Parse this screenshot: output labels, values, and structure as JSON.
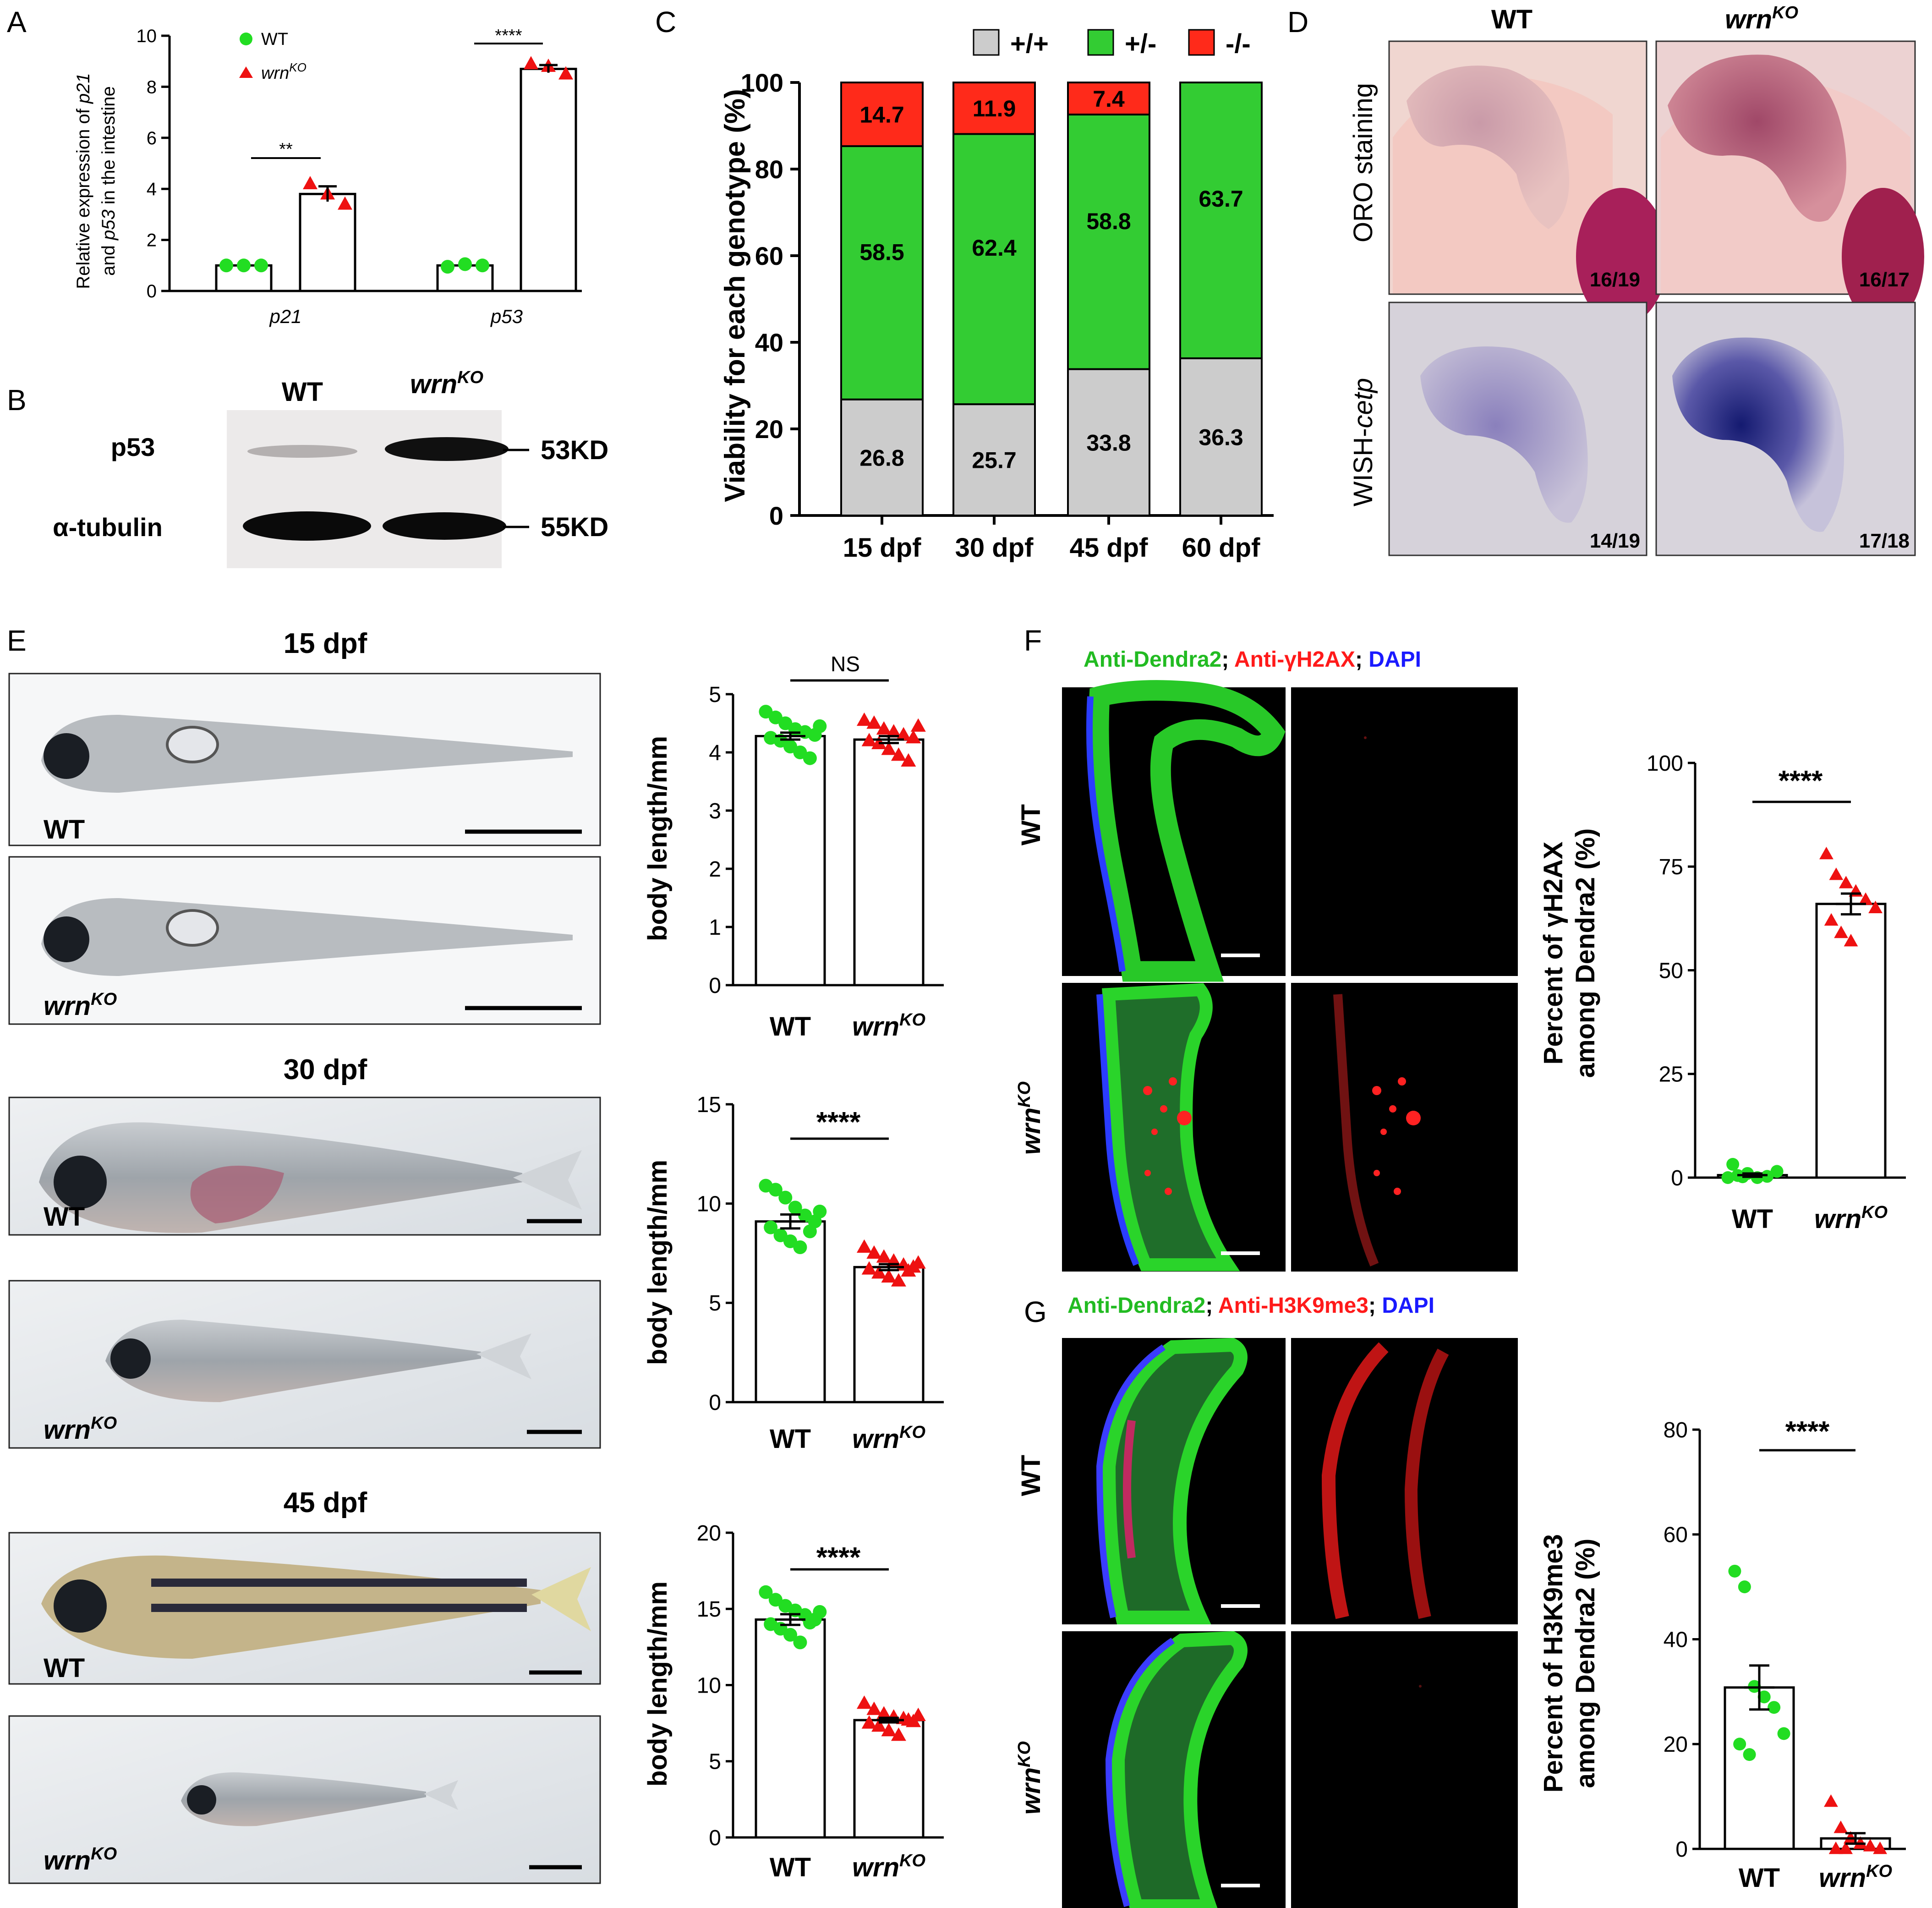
{
  "colors": {
    "wt_green": "#22dd22",
    "ko_red": "#ee1111",
    "hom_red": "#ff2a1a",
    "het_green": "#33cc33",
    "wt_gray": "#cccccc",
    "dendra_green": "#22bb22",
    "anti_red": "#ff1a1a",
    "dapi_blue": "#1a1aff"
  },
  "panel_letters": {
    "a": "A",
    "b": "B",
    "c": "C",
    "d": "D",
    "e": "E",
    "f": "F",
    "g": "G"
  },
  "panelA": {
    "ylabel_line1_pre": "Relative expression of ",
    "ylabel_line1_gene": "p21",
    "ylabel_line2_pre": "and ",
    "ylabel_line2_gene": "p53",
    "ylabel_line2_post": " in the intestine",
    "legend_wt": "WT",
    "legend_ko_base": "wrn",
    "legend_ko_sup": "KO",
    "sig_p21": "**",
    "sig_p53": "****"
  },
  "panelB": {
    "wt": "WT",
    "ko_base": "wrn",
    "ko_sup": "KO",
    "row1": "p53",
    "row2": "α-tubulin",
    "size1": "53KD",
    "size2": "55KD"
  },
  "panelC": {
    "ylabel": "Viability for each genotype (%)",
    "legend_wt": "+/+",
    "legend_het": "+/-",
    "legend_hom": "-/-"
  },
  "panelD": {
    "col_wt": "WT",
    "col_ko_base": "wrn",
    "col_ko_sup": "KO",
    "row1": "ORO staining",
    "row2_pre": "WISH-",
    "row2_gene": "cetp",
    "ratios": [
      "16/19",
      "16/17",
      "14/19",
      "17/18"
    ]
  },
  "panelE": {
    "stages": [
      "15 dpf",
      "30 dpf",
      "45 dpf"
    ],
    "wt": "WT",
    "ko_base": "wrn",
    "ko_sup": "KO",
    "ylabel": "body length/mm",
    "sig": [
      "NS",
      "****",
      "****"
    ]
  },
  "panelF": {
    "title_green": "Anti-Dendra2",
    "title_red": "Anti-γH2AX",
    "title_blue": "DAPI",
    "row_wt": "WT",
    "row_ko_base": "wrn",
    "row_ko_sup": "KO",
    "ylabel_line1": "Percent of γH2AX",
    "ylabel_line2": "among Dendra2 (%)",
    "sig": "****"
  },
  "panelG": {
    "title_green": "Anti-Dendra2",
    "title_red": "Anti-H3K9me3",
    "title_blue": "DAPI",
    "row_wt": "WT",
    "row_ko_base": "wrn",
    "row_ko_sup": "KO",
    "ylabel_line1": "Percent of H3K9me3",
    "ylabel_line2": "among Dendra2 (%)",
    "sig": "****"
  },
  "chart_data": [
    {
      "id": "A",
      "type": "bar",
      "categories": [
        "p21",
        "p53"
      ],
      "series": [
        {
          "name": "WT",
          "values": [
            1.0,
            1.0
          ],
          "points": [
            [
              1.0,
              1.0,
              1.0
            ],
            [
              0.95,
              1.05,
              1.0
            ]
          ]
        },
        {
          "name": "wrnKO",
          "values": [
            3.8,
            8.7
          ],
          "sem": [
            0.3,
            0.15
          ],
          "points": [
            [
              4.2,
              3.8,
              3.4
            ],
            [
              8.9,
              8.8,
              8.5
            ]
          ]
        }
      ],
      "ylim": [
        0,
        10
      ],
      "yticks": [
        0,
        2,
        4,
        6,
        8,
        10
      ]
    },
    {
      "id": "C",
      "type": "bar",
      "stacked": true,
      "categories": [
        "15 dpf",
        "30 dpf",
        "45 dpf",
        "60 dpf"
      ],
      "series": [
        {
          "name": "+/+",
          "values": [
            26.8,
            25.7,
            33.8,
            36.3
          ]
        },
        {
          "name": "+/-",
          "values": [
            58.5,
            62.4,
            58.8,
            63.7
          ]
        },
        {
          "name": "-/-",
          "values": [
            14.7,
            11.9,
            7.4,
            0
          ]
        }
      ],
      "labels": [
        [
          "26.8",
          "58.5",
          "14.7"
        ],
        [
          "25.7",
          "62.4",
          "11.9"
        ],
        [
          "33.8",
          "58.8",
          "7.4"
        ],
        [
          "36.3",
          "63.7",
          ""
        ]
      ],
      "ylim": [
        0,
        100
      ],
      "yticks": [
        0,
        20,
        40,
        60,
        80,
        100
      ],
      "legend": "top"
    },
    {
      "id": "E1",
      "type": "bar",
      "categories": [
        "WT",
        "wrnKO"
      ],
      "values": [
        4.28,
        4.22
      ],
      "sem": [
        0.06,
        0.06
      ],
      "points": [
        [
          4.7,
          4.6,
          4.5,
          4.4,
          4.35,
          4.3,
          4.25,
          4.2,
          4.1,
          4.0,
          3.9,
          4.45
        ],
        [
          4.55,
          4.5,
          4.4,
          4.35,
          4.3,
          4.25,
          4.2,
          4.15,
          4.05,
          3.95,
          3.85,
          4.45
        ]
      ],
      "ylim": [
        0,
        5
      ],
      "yticks": [
        0,
        1,
        2,
        3,
        4,
        5
      ]
    },
    {
      "id": "E2",
      "type": "bar",
      "categories": [
        "WT",
        "wrnKO"
      ],
      "values": [
        9.1,
        6.8
      ],
      "sem": [
        0.35,
        0.15
      ],
      "points": [
        [
          10.9,
          10.7,
          10.3,
          9.8,
          9.4,
          9.1,
          8.8,
          8.4,
          8.1,
          7.8,
          8.6,
          9.6
        ],
        [
          7.8,
          7.5,
          7.3,
          7.1,
          6.9,
          6.8,
          6.7,
          6.5,
          6.3,
          6.1,
          6.6,
          7.0
        ]
      ],
      "ylim": [
        0,
        15
      ],
      "yticks": [
        0,
        5,
        10,
        15
      ]
    },
    {
      "id": "E3",
      "type": "bar",
      "categories": [
        "WT",
        "wrnKO"
      ],
      "values": [
        14.3,
        7.7
      ],
      "sem": [
        0.35,
        0.15
      ],
      "points": [
        [
          16.1,
          15.6,
          15.2,
          14.9,
          14.6,
          14.3,
          14.0,
          13.7,
          13.3,
          12.8,
          14.1,
          14.8
        ],
        [
          8.8,
          8.4,
          8.1,
          7.9,
          7.8,
          7.6,
          7.5,
          7.3,
          7.0,
          6.7,
          7.7,
          8.0
        ]
      ],
      "ylim": [
        0,
        20
      ],
      "yticks": [
        0,
        5,
        10,
        15,
        20
      ]
    },
    {
      "id": "F",
      "type": "bar",
      "categories": [
        "WT",
        "wrnKO"
      ],
      "values": [
        0.6,
        66.0
      ],
      "sem": [
        0.4,
        2.5
      ],
      "points": [
        [
          0,
          0.5,
          1.0,
          0,
          0.3,
          1.5,
          3.2,
          0.2
        ],
        [
          78,
          73,
          71,
          69,
          67,
          65,
          62,
          59,
          57
        ]
      ],
      "ylim": [
        0,
        100
      ],
      "yticks": [
        0,
        25,
        50,
        75,
        100
      ]
    },
    {
      "id": "G",
      "type": "bar",
      "categories": [
        "WT",
        "wrnKO"
      ],
      "values": [
        30.8,
        2.0
      ],
      "sem": [
        4.2,
        1.0
      ],
      "points": [
        [
          53,
          50,
          31,
          29,
          27,
          22,
          20,
          18
        ],
        [
          9,
          4,
          2,
          1,
          0.5,
          0,
          0,
          0
        ]
      ],
      "ylim": [
        0,
        80
      ],
      "yticks": [
        0,
        20,
        40,
        60,
        80
      ]
    }
  ]
}
